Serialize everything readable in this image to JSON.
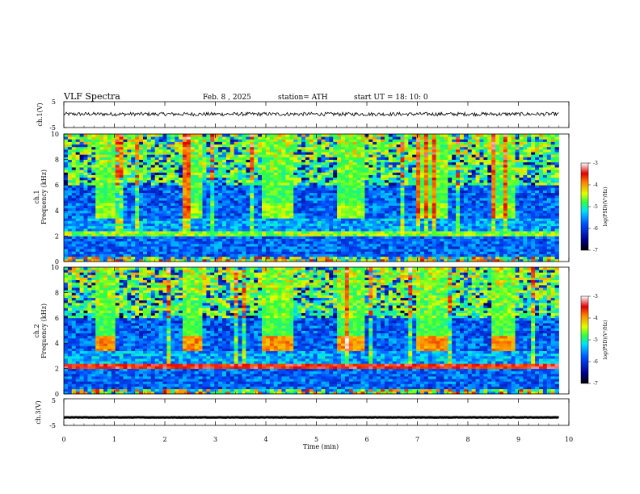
{
  "header": {
    "title": "VLF  Spectra",
    "date": "Feb. 8  , 2025",
    "station": "station= ATH",
    "start": "start  UT  =    18: 10: 0"
  },
  "chart_data": [
    {
      "type": "line",
      "ylabel": "ch.1(V)",
      "ylim": [
        -5,
        5
      ],
      "yticks": [
        "5",
        "-5"
      ],
      "xlim": [
        0,
        10
      ],
      "baseline_v": 0.2,
      "color": "#000000"
    },
    {
      "type": "heatmap",
      "ylabel": "ch.1\nFrequency  (kHz)",
      "ylabel_lines": [
        "ch.1",
        "Frequency  (kHz)"
      ],
      "ylim": [
        0,
        10
      ],
      "yticks": [
        "0",
        "2",
        "4",
        "6",
        "8",
        "10"
      ],
      "xlim": [
        0,
        10
      ],
      "data_end_min": 9.8,
      "bursts_min": [
        [
          0.6,
          1.0
        ],
        [
          2.35,
          2.7
        ],
        [
          3.9,
          4.5
        ],
        [
          5.4,
          5.9
        ],
        [
          6.95,
          7.55
        ],
        [
          8.45,
          8.9
        ]
      ],
      "burst_band_khz": [
        3.5,
        4.5
      ],
      "colorbar": {
        "label": "log(PSD)(V²/Hz)",
        "ticks": [
          "-3",
          "-4",
          "-5",
          "-6",
          "-7"
        ],
        "range": [
          -7,
          -3
        ]
      }
    },
    {
      "type": "heatmap",
      "ylabel": "ch.2\nFrequency  (kHz)",
      "ylabel_lines": [
        "ch.2",
        "Frequency  (kHz)"
      ],
      "ylim": [
        0,
        10
      ],
      "yticks": [
        "0",
        "2",
        "4",
        "6",
        "8",
        "10"
      ],
      "xlim": [
        0,
        10
      ],
      "data_end_min": 9.8,
      "bursts_min": [
        [
          0.6,
          1.0
        ],
        [
          2.35,
          2.7
        ],
        [
          3.9,
          4.5
        ],
        [
          5.4,
          5.9
        ],
        [
          6.95,
          7.55
        ],
        [
          8.45,
          8.9
        ]
      ],
      "burst_band_khz": [
        3.5,
        4.5
      ],
      "colorbar": {
        "label": "log(PSD)(V²/Hz)",
        "ticks": [
          "-3",
          "-4",
          "-5",
          "-6",
          "-7"
        ],
        "range": [
          -7,
          -3
        ]
      }
    },
    {
      "type": "line",
      "ylabel": "ch.3(V)",
      "ylim": [
        -5,
        5
      ],
      "yticks": [
        "5",
        "-5"
      ],
      "xlim": [
        0,
        10
      ],
      "baseline_v": -2,
      "color": "#000000"
    }
  ],
  "xaxis": {
    "label": "Time  (min)",
    "ticks": [
      "0",
      "1",
      "2",
      "3",
      "4",
      "5",
      "6",
      "7",
      "8",
      "9",
      "10"
    ]
  }
}
